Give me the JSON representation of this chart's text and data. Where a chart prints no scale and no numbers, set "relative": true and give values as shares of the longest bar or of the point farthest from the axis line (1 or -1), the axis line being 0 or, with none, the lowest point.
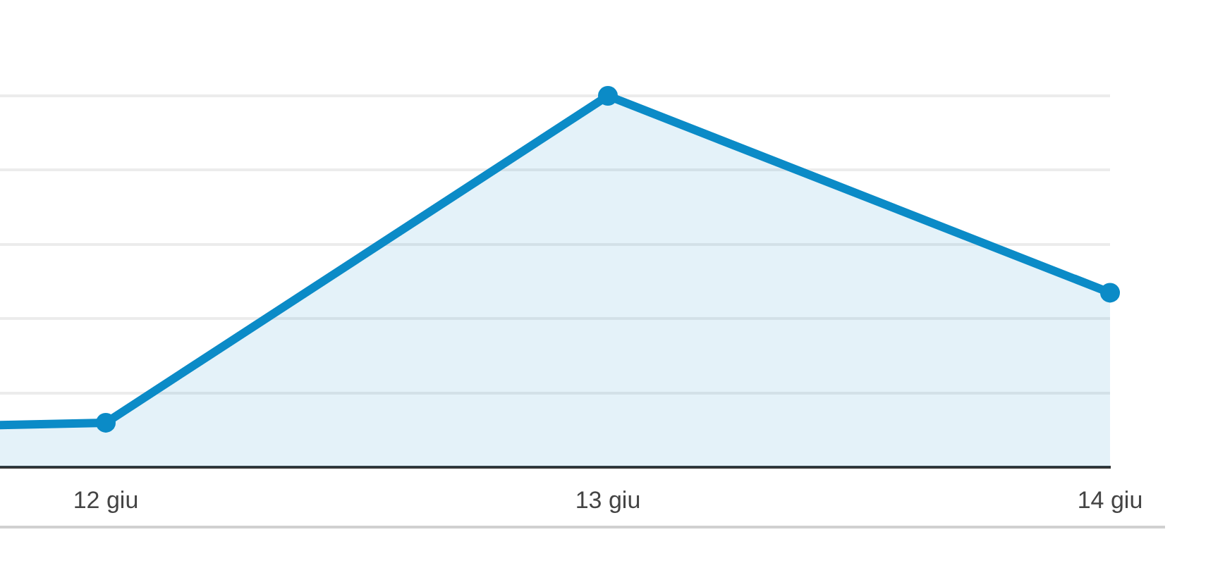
{
  "chart_data": {
    "type": "area",
    "relative": true,
    "categories": [
      null,
      "12 giu",
      "13 giu",
      "14 giu"
    ],
    "values": [
      0.09,
      0.12,
      1,
      0.47
    ],
    "color": "#0b8bc7",
    "grid": "y",
    "marker": "circle",
    "line_style": "solid"
  }
}
